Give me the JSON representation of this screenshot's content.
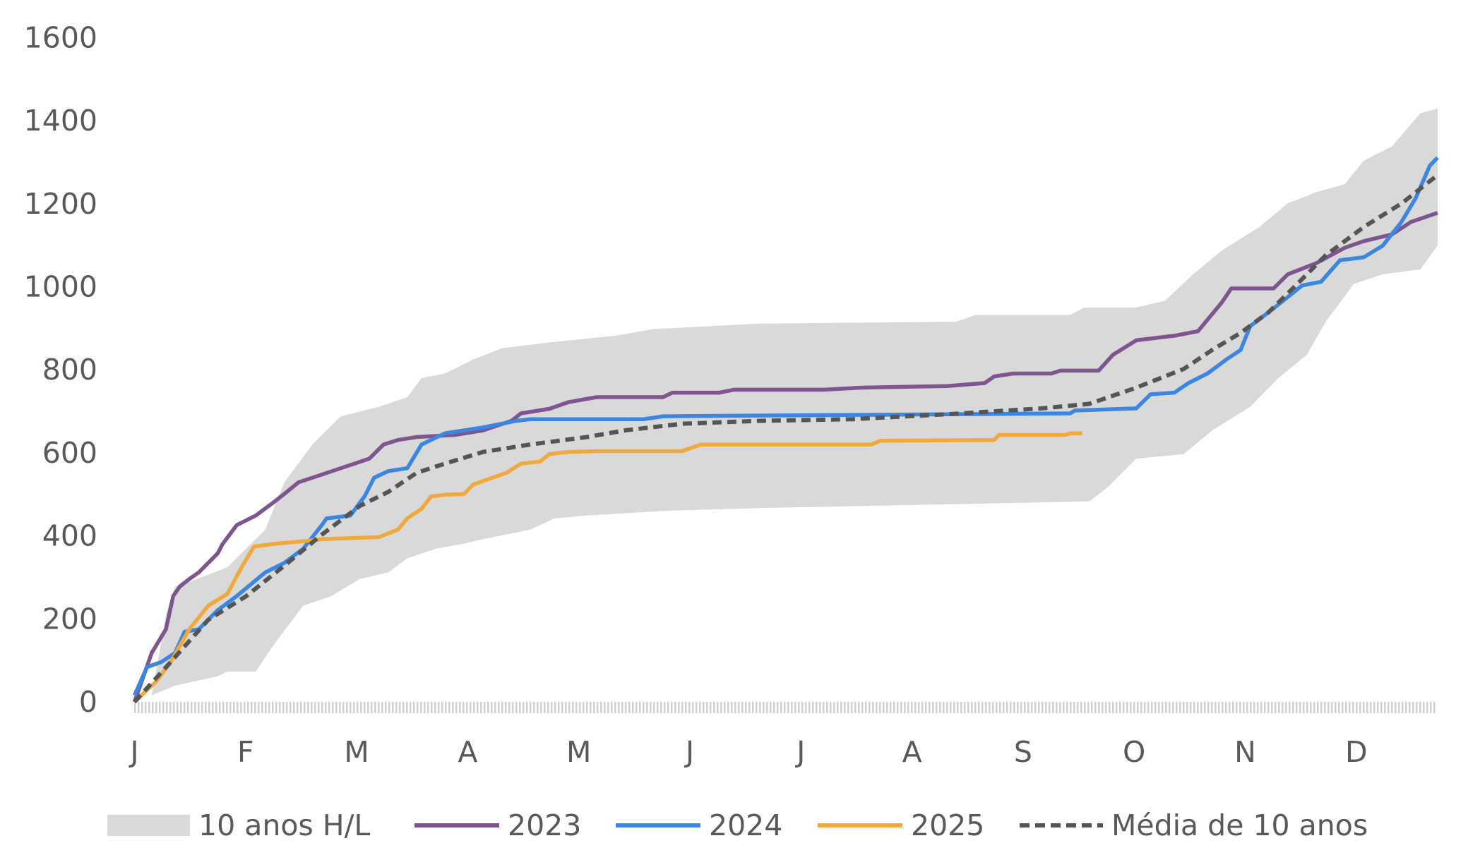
{
  "chart_data": {
    "type": "line",
    "title": "",
    "xlabel": "",
    "ylabel": "",
    "ylim": [
      0,
      1600
    ],
    "yticks": [
      "0",
      "200",
      "400",
      "600",
      "800",
      "1000",
      "1200",
      "1400",
      "1600"
    ],
    "xticks": [
      "J",
      "F",
      "M",
      "A",
      "M",
      "J",
      "J",
      "A",
      "S",
      "O",
      "N",
      "D"
    ],
    "x_units": "day of year",
    "xlim": [
      0,
      365
    ],
    "legend_position": "bottom",
    "band": {
      "name": "10 anos H/L",
      "color": "#d9d9d9",
      "high": [
        [
          0,
          0
        ],
        [
          4.7,
          16
        ],
        [
          8.6,
          210
        ],
        [
          11.1,
          278
        ],
        [
          15,
          289
        ],
        [
          25.4,
          324
        ],
        [
          35.8,
          415
        ],
        [
          41,
          529
        ],
        [
          48.7,
          620
        ],
        [
          56.5,
          688
        ],
        [
          66.9,
          711
        ],
        [
          74.7,
          734
        ],
        [
          78.6,
          780
        ],
        [
          85,
          791
        ],
        [
          92.8,
          825
        ],
        [
          100.6,
          852
        ],
        [
          113.6,
          866
        ],
        [
          131.7,
          882
        ],
        [
          142.1,
          898
        ],
        [
          170.6,
          911
        ],
        [
          225.1,
          916
        ],
        [
          230.3,
          932
        ],
        [
          256.2,
          932
        ],
        [
          260.1,
          950
        ],
        [
          274.3,
          950
        ],
        [
          282.1,
          966
        ],
        [
          289.9,
          1030
        ],
        [
          297.7,
          1087
        ],
        [
          308,
          1144
        ],
        [
          315.8,
          1201
        ],
        [
          323.6,
          1228
        ],
        [
          331.4,
          1247
        ],
        [
          336.6,
          1304
        ],
        [
          344.3,
          1338
        ],
        [
          352.1,
          1418
        ],
        [
          356.8,
          1429
        ]
      ],
      "low": [
        [
          0,
          0
        ],
        [
          4.7,
          16
        ],
        [
          11.1,
          39
        ],
        [
          22.8,
          62
        ],
        [
          25.4,
          73
        ],
        [
          33.2,
          73
        ],
        [
          38.4,
          141
        ],
        [
          46.2,
          232
        ],
        [
          53.9,
          255
        ],
        [
          61.7,
          296
        ],
        [
          69.5,
          312
        ],
        [
          74.7,
          346
        ],
        [
          82.5,
          369
        ],
        [
          90.2,
          381
        ],
        [
          95.4,
          392
        ],
        [
          108.4,
          415
        ],
        [
          114.9,
          442
        ],
        [
          123.9,
          449
        ],
        [
          144.7,
          460
        ],
        [
          170.6,
          467
        ],
        [
          222.5,
          476
        ],
        [
          261.4,
          483
        ],
        [
          266.5,
          517
        ],
        [
          274.3,
          586
        ],
        [
          287.3,
          597
        ],
        [
          295.1,
          654
        ],
        [
          305.5,
          711
        ],
        [
          313.2,
          780
        ],
        [
          321,
          836
        ],
        [
          326.2,
          916
        ],
        [
          333.9,
          1007
        ],
        [
          341.8,
          1030
        ],
        [
          352.1,
          1042
        ],
        [
          356.8,
          1099
        ]
      ]
    },
    "series": [
      {
        "name": "2023",
        "color": "#7f5590",
        "dashed": false,
        "points": [
          [
            0,
            0
          ],
          [
            4.7,
            118
          ],
          [
            8.6,
            175
          ],
          [
            10.6,
            255
          ],
          [
            12.4,
            278
          ],
          [
            15,
            296
          ],
          [
            17.6,
            312
          ],
          [
            22.8,
            358
          ],
          [
            24.1,
            380
          ],
          [
            28,
            426
          ],
          [
            33.2,
            449
          ],
          [
            38.4,
            483
          ],
          [
            41,
            501
          ],
          [
            44.9,
            529
          ],
          [
            48.7,
            540
          ],
          [
            56.5,
            563
          ],
          [
            64.3,
            586
          ],
          [
            68.2,
            620
          ],
          [
            72.1,
            631
          ],
          [
            77.3,
            638
          ],
          [
            87.6,
            643
          ],
          [
            95.4,
            654
          ],
          [
            103.2,
            677
          ],
          [
            105.8,
            695
          ],
          [
            113.6,
            706
          ],
          [
            118.8,
            722
          ],
          [
            126.5,
            734
          ],
          [
            144.7,
            734
          ],
          [
            147.3,
            745
          ],
          [
            160.2,
            745
          ],
          [
            164.1,
            752
          ],
          [
            188.8,
            752
          ],
          [
            199.1,
            757
          ],
          [
            222.5,
            761
          ],
          [
            232.8,
            768
          ],
          [
            235.4,
            784
          ],
          [
            240.6,
            791
          ],
          [
            251,
            791
          ],
          [
            253.6,
            798
          ],
          [
            264,
            798
          ],
          [
            267.9,
            836
          ],
          [
            274.3,
            871
          ],
          [
            284.7,
            882
          ],
          [
            291.2,
            893
          ],
          [
            297.7,
            962
          ],
          [
            300.3,
            996
          ],
          [
            311.9,
            996
          ],
          [
            315.8,
            1030
          ],
          [
            323.6,
            1057
          ],
          [
            331.4,
            1094
          ],
          [
            336.6,
            1110
          ],
          [
            344.3,
            1126
          ],
          [
            349.5,
            1156
          ],
          [
            356.8,
            1178
          ]
        ]
      },
      {
        "name": "2024",
        "color": "#3a86e0",
        "dashed": false,
        "points": [
          [
            0,
            16
          ],
          [
            3.4,
            84
          ],
          [
            7.3,
            96
          ],
          [
            11.1,
            118
          ],
          [
            13.7,
            169
          ],
          [
            17.6,
            175
          ],
          [
            22.8,
            221
          ],
          [
            28,
            255
          ],
          [
            35.8,
            312
          ],
          [
            41,
            335
          ],
          [
            46.2,
            369
          ],
          [
            51.3,
            426
          ],
          [
            52.6,
            442
          ],
          [
            59.1,
            449
          ],
          [
            63,
            495
          ],
          [
            65.6,
            540
          ],
          [
            69.5,
            556
          ],
          [
            74.7,
            563
          ],
          [
            78.6,
            620
          ],
          [
            85,
            647
          ],
          [
            90.2,
            654
          ],
          [
            95.4,
            661
          ],
          [
            104.5,
            677
          ],
          [
            108.4,
            681
          ],
          [
            139.5,
            681
          ],
          [
            144.7,
            688
          ],
          [
            256.2,
            695
          ],
          [
            257.5,
            702
          ],
          [
            274.3,
            707
          ],
          [
            278.2,
            741
          ],
          [
            284.7,
            745
          ],
          [
            288.6,
            768
          ],
          [
            293.8,
            791
          ],
          [
            299,
            825
          ],
          [
            302.9,
            848
          ],
          [
            305.5,
            905
          ],
          [
            310.6,
            939
          ],
          [
            314.5,
            966
          ],
          [
            319.7,
            1003
          ],
          [
            324.9,
            1012
          ],
          [
            330.1,
            1064
          ],
          [
            336.6,
            1071
          ],
          [
            341.8,
            1099
          ],
          [
            346.9,
            1156
          ],
          [
            350.8,
            1213
          ],
          [
            354.7,
            1292
          ],
          [
            356.8,
            1311
          ]
        ]
      },
      {
        "name": "2025",
        "color": "#f0a93e",
        "dashed": false,
        "points": [
          [
            0,
            0
          ],
          [
            6,
            50
          ],
          [
            9.9,
            96
          ],
          [
            15,
            175
          ],
          [
            20.2,
            232
          ],
          [
            25.4,
            260
          ],
          [
            29.3,
            324
          ],
          [
            32.7,
            374
          ],
          [
            38.4,
            381
          ],
          [
            46.2,
            387
          ],
          [
            51.3,
            392
          ],
          [
            66.9,
            397
          ],
          [
            72.1,
            415
          ],
          [
            74.7,
            442
          ],
          [
            78.6,
            465
          ],
          [
            81.2,
            495
          ],
          [
            85,
            499
          ],
          [
            90.2,
            501
          ],
          [
            92.8,
            524
          ],
          [
            98,
            540
          ],
          [
            101.9,
            552
          ],
          [
            105.8,
            574
          ],
          [
            111,
            579
          ],
          [
            113.6,
            597
          ],
          [
            118.8,
            602
          ],
          [
            126.5,
            604
          ],
          [
            149.9,
            604
          ],
          [
            155.1,
            620
          ],
          [
            201.7,
            620
          ],
          [
            204.3,
            629
          ],
          [
            235.4,
            631
          ],
          [
            236.7,
            643
          ],
          [
            254.9,
            643
          ],
          [
            256.2,
            647
          ],
          [
            259.5,
            647
          ]
        ]
      },
      {
        "name": "Média de 10 anos",
        "color": "#555555",
        "dashed": true,
        "points": [
          [
            0,
            0
          ],
          [
            9.9,
            96
          ],
          [
            20.2,
            198
          ],
          [
            30.6,
            255
          ],
          [
            41,
            328
          ],
          [
            51.3,
            403
          ],
          [
            61.7,
            472
          ],
          [
            69.5,
            506
          ],
          [
            77.3,
            552
          ],
          [
            85,
            574
          ],
          [
            95.4,
            602
          ],
          [
            108.4,
            620
          ],
          [
            123.9,
            638
          ],
          [
            134.3,
            654
          ],
          [
            149.9,
            670
          ],
          [
            170.6,
            677
          ],
          [
            196.5,
            681
          ],
          [
            222.5,
            693
          ],
          [
            248.4,
            707
          ],
          [
            261.4,
            718
          ],
          [
            274.3,
            757
          ],
          [
            287.3,
            802
          ],
          [
            295.1,
            848
          ],
          [
            302.9,
            889
          ],
          [
            310.6,
            939
          ],
          [
            318.4,
            1007
          ],
          [
            326.2,
            1076
          ],
          [
            336.6,
            1144
          ],
          [
            347,
            1201
          ],
          [
            356.8,
            1269
          ]
        ]
      }
    ]
  }
}
